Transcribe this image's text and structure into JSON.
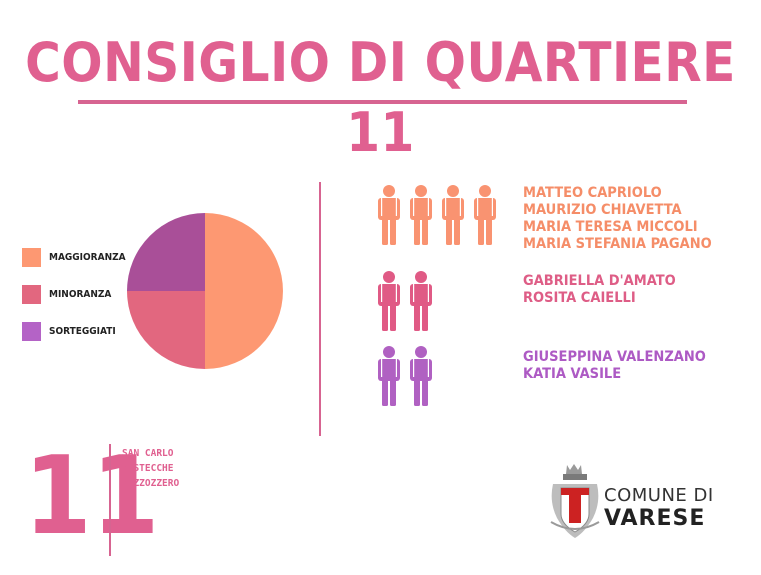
{
  "title": "CONSIGLIO DI QUARTIERE 11",
  "colors": {
    "title": "#e06090",
    "divider": "#d76491",
    "maggioranza": "#fd9872",
    "minoranza": "#e2677f",
    "sorteggiati": "#a94f98",
    "maggioranza_text": "#f58d68",
    "minoranza_text": "#de5d86",
    "sorteggiati_text": "#ad5ac4",
    "sorteggiati_swatch": "#b463c6",
    "person_maggioranza": "#f99371",
    "person_minoranza": "#e05a85",
    "person_sorteggiati": "#b061c2"
  },
  "chart_data": {
    "type": "pie",
    "slices": [
      {
        "name": "MAGGIORANZA",
        "value": 4
      },
      {
        "name": "MINORANZA",
        "value": 2
      },
      {
        "name": "SORTEGGIATI",
        "value": 2
      }
    ],
    "legend_placement": "left"
  },
  "legend": [
    {
      "label": "MAGGIORANZA"
    },
    {
      "label": "MINORANZA"
    },
    {
      "label": "SORTEGGIATI"
    }
  ],
  "members": {
    "maggioranza": [
      "MATTEO CAPRIOLO",
      "MAURIZIO CHIAVETTA",
      "MARIA TERESA MICCOLI",
      "MARIA STEFANIA PAGANO"
    ],
    "minoranza": [
      "GABRIELLA D'AMATO",
      "ROSITA CAIELLI"
    ],
    "sorteggiati": [
      "GIUSEPPINA VALENZANO",
      "KATIA VASILE"
    ]
  },
  "district": {
    "number": "11",
    "areas": [
      "SAN CARLO",
      "BUSTECCHE",
      "BIZZOZZERO"
    ]
  },
  "logo": {
    "line1": "COMUNE DI",
    "line2": "VARESE",
    "icon": "varese-coat-of-arms-icon"
  }
}
